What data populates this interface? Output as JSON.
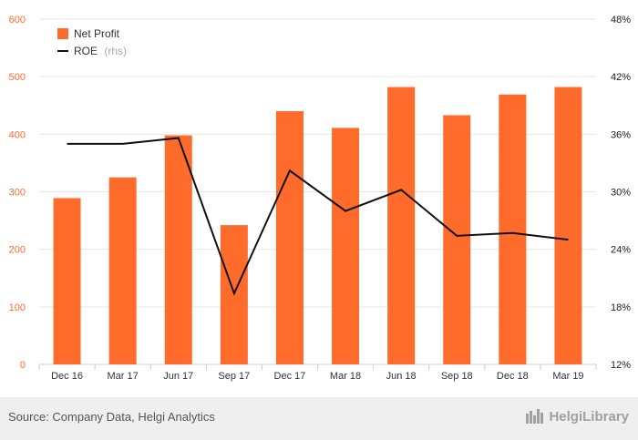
{
  "source": "Source: Company Data, Helgi Analytics",
  "brand": "HelgiLibrary",
  "colors": {
    "bar": "#ff6b2b",
    "line": "#111111",
    "grid": "#e6e6e6"
  },
  "chart_data": {
    "type": "bar",
    "categories": [
      "Dec 16",
      "Mar 17",
      "Jun 17",
      "Sep 17",
      "Dec 17",
      "Mar 18",
      "Jun 18",
      "Sep 18",
      "Dec 18",
      "Mar 19"
    ],
    "series": [
      {
        "name": "Net Profit",
        "type": "bar",
        "axis": "left",
        "values": [
          289,
          325,
          398,
          242,
          440,
          411,
          482,
          433,
          469,
          482
        ]
      },
      {
        "name": "ROE",
        "name_suffix": "(rhs)",
        "type": "line",
        "axis": "right",
        "unit": "%",
        "values": [
          35.0,
          35.0,
          35.6,
          19.4,
          32.2,
          28.0,
          30.2,
          25.4,
          25.7,
          25.0
        ]
      }
    ],
    "yleft": {
      "lim": [
        0,
        600
      ],
      "ticks": [
        "0",
        "100",
        "200",
        "300",
        "400",
        "500",
        "600"
      ]
    },
    "yright": {
      "lim": [
        12,
        48
      ],
      "ticks": [
        "12%",
        "18%",
        "24%",
        "30%",
        "36%",
        "42%",
        "48%"
      ]
    },
    "grid": true,
    "legend": "top-left"
  }
}
